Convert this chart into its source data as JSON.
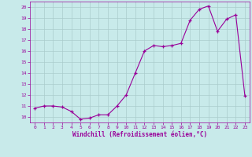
{
  "x_data": [
    0,
    1,
    2,
    3,
    4,
    5,
    6,
    7,
    8,
    9,
    10,
    11,
    12,
    13,
    14,
    15,
    16,
    17,
    18,
    19,
    20,
    21,
    22,
    23
  ],
  "y_data": [
    10.8,
    11.0,
    11.0,
    10.9,
    10.5,
    9.8,
    9.9,
    10.2,
    10.2,
    11.0,
    12.0,
    14.0,
    16.0,
    16.5,
    16.4,
    16.5,
    16.7,
    18.8,
    19.8,
    20.1,
    17.8,
    18.9,
    19.3,
    11.9
  ],
  "line_color": "#990099",
  "marker_color": "#990099",
  "bg_color": "#c8eaea",
  "grid_color": "#aacccc",
  "xlabel": "Windchill (Refroidissement éolien,°C)",
  "ylim_min": 10,
  "ylim_max": 20,
  "xlim_min": 0,
  "xlim_max": 23,
  "yticks": [
    10,
    11,
    12,
    13,
    14,
    15,
    16,
    17,
    18,
    19,
    20
  ],
  "xticks": [
    0,
    1,
    2,
    3,
    4,
    5,
    6,
    7,
    8,
    9,
    10,
    11,
    12,
    13,
    14,
    15,
    16,
    17,
    18,
    19,
    20,
    21,
    22,
    23
  ],
  "xlabel_color": "#990099",
  "tick_color": "#990099",
  "tick_label_fontsize": 4.5,
  "xlabel_fontsize": 5.5
}
